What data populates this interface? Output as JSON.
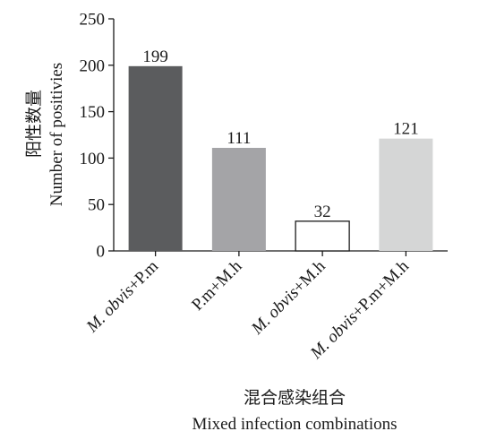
{
  "chart_data": {
    "type": "bar",
    "categories": [
      {
        "italic": "M. obvis",
        "rest": "+P.m"
      },
      {
        "italic": "",
        "rest": "P.m+M.h"
      },
      {
        "italic": "M. obvis",
        "rest": "+M.h"
      },
      {
        "italic": "M. obvis",
        "rest": "+P.m+M.h"
      }
    ],
    "values": [
      199,
      111,
      32,
      121
    ],
    "bar_colors": [
      "#5b5c5e",
      "#a4a4a7",
      "#ffffff",
      "#d5d6d6"
    ],
    "bar_stroke": [
      "none",
      "none",
      "#1a1a1a",
      "none"
    ],
    "data_labels": [
      "199",
      "111",
      "32",
      "121"
    ],
    "ylim": [
      0,
      250
    ],
    "yticks": [
      0,
      50,
      100,
      150,
      200,
      250
    ],
    "ylabel_cn": "阳性数量",
    "ylabel_en": "Number of positivies",
    "xlabel_cn": "混合感染组合",
    "xlabel_en": "Mixed infection combinations",
    "grid": false,
    "legend": "none"
  }
}
